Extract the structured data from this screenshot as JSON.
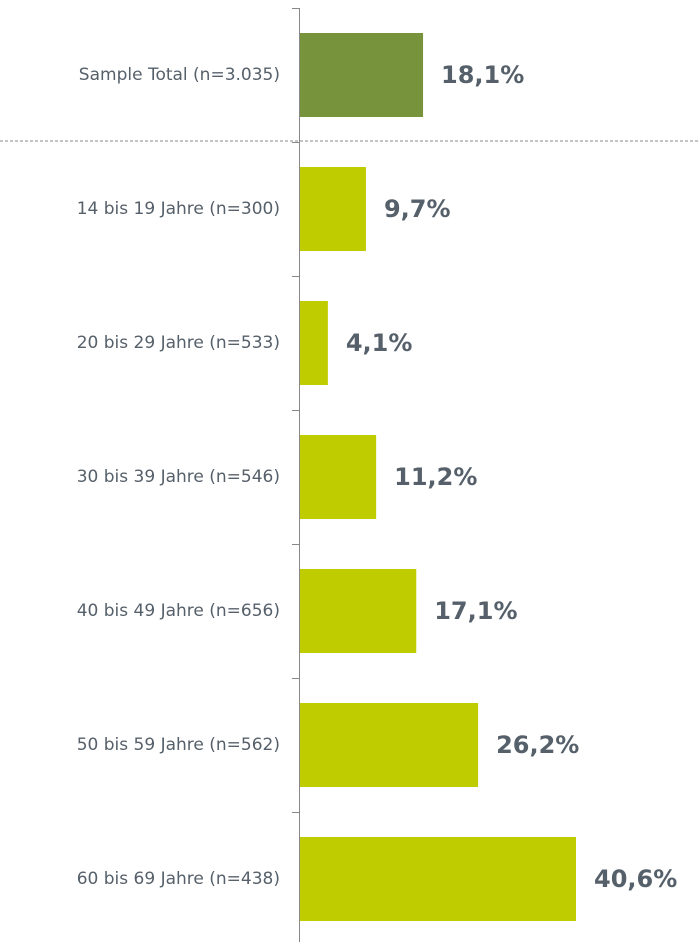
{
  "chart_data": {
    "type": "bar",
    "orientation": "horizontal",
    "categories": [
      "Sample Total (n=3.035)",
      "14 bis 19 Jahre (n=300)",
      "20 bis 29 Jahre (n=533)",
      "30 bis 39 Jahre (n=546)",
      "40 bis 49 Jahre (n=656)",
      "50 bis 59 Jahre (n=562)",
      "60 bis 69 Jahre (n=438)"
    ],
    "values": [
      18.1,
      9.7,
      4.1,
      11.2,
      17.1,
      26.2,
      40.6
    ],
    "value_labels": [
      "18,1%",
      "9,7%",
      "4,1%",
      "11,2%",
      "17,1%",
      "26,2%",
      "40,6%"
    ],
    "colors": [
      "#77933c",
      "#bfcc00",
      "#bfcc00",
      "#bfcc00",
      "#bfcc00",
      "#bfcc00",
      "#bfcc00"
    ]
  }
}
